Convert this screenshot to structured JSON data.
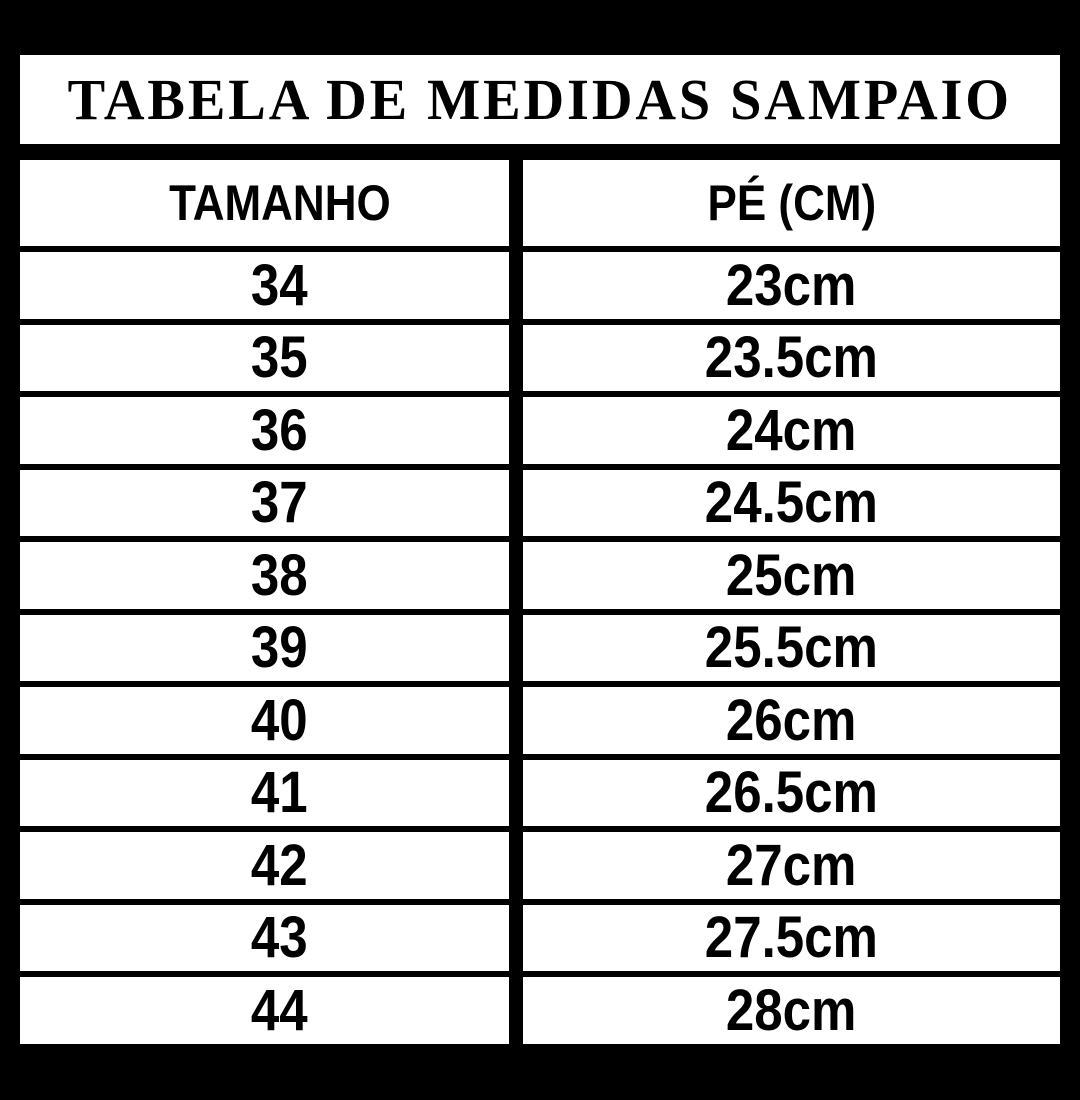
{
  "chart_data": {
    "type": "table",
    "title": "TABELA DE MEDIDAS SAMPAIO",
    "columns": [
      "TAMANHO",
      "PÉ (CM)"
    ],
    "rows": [
      [
        "34",
        "23cm"
      ],
      [
        "35",
        "23.5cm"
      ],
      [
        "36",
        "24cm"
      ],
      [
        "37",
        "24.5cm"
      ],
      [
        "38",
        "25cm"
      ],
      [
        "39",
        "25.5cm"
      ],
      [
        "40",
        "26cm"
      ],
      [
        "41",
        "26.5cm"
      ],
      [
        "42",
        "27cm"
      ],
      [
        "43",
        "27.5cm"
      ],
      [
        "44",
        "28cm"
      ]
    ]
  },
  "colors": {
    "page_background": "#000000",
    "cell_background": "#ffffff",
    "text": "#000000"
  }
}
